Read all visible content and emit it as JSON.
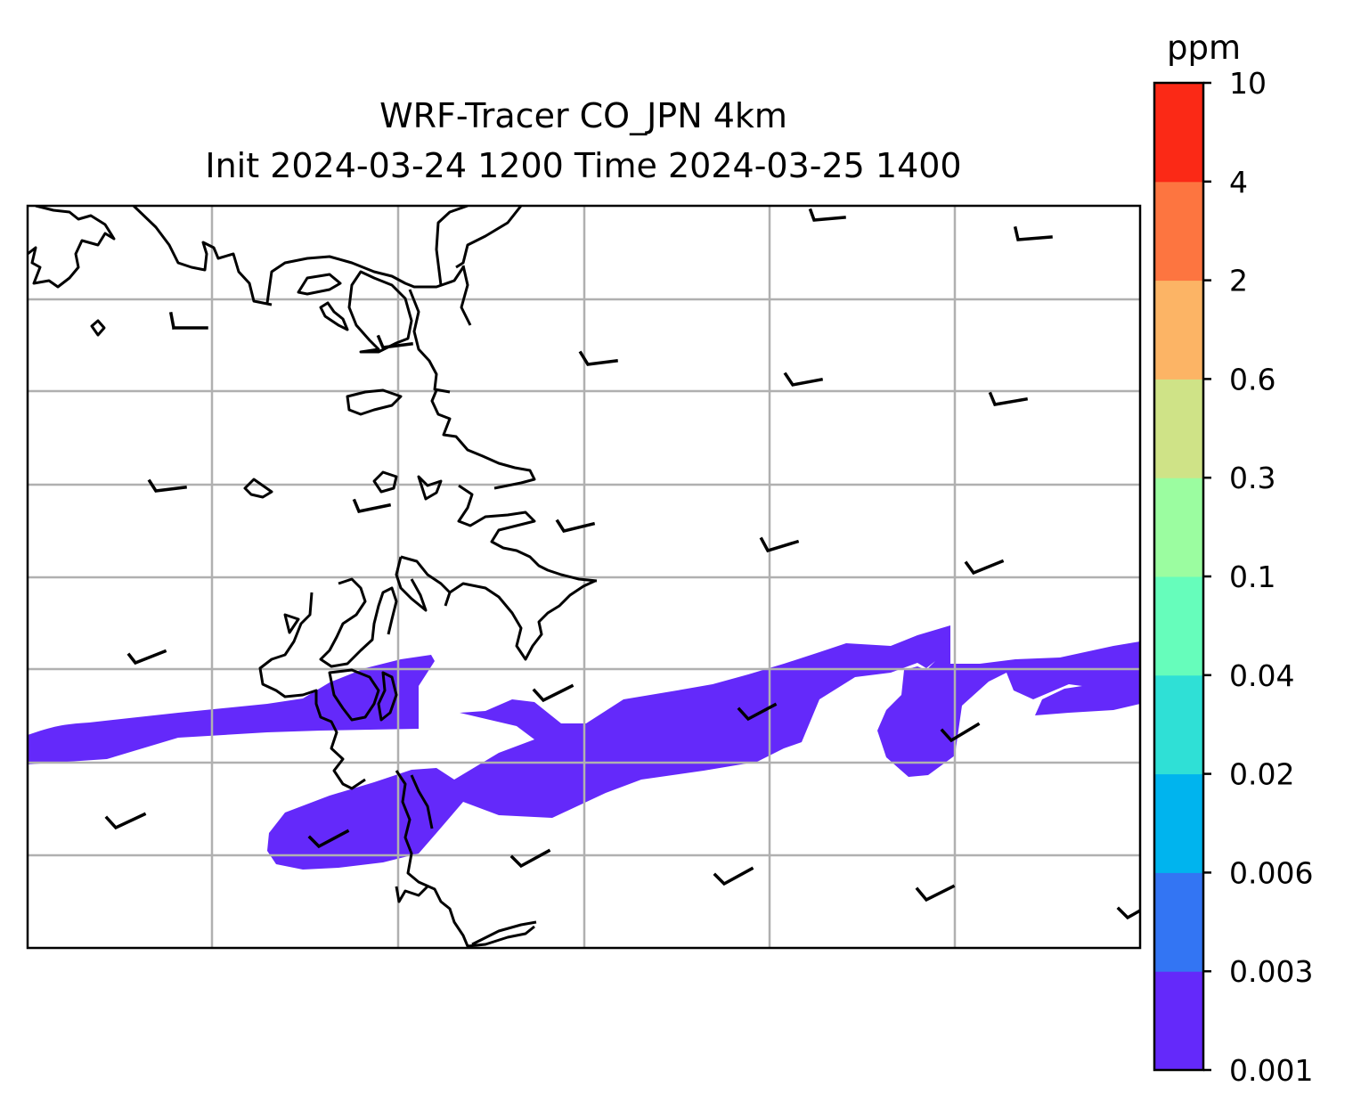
{
  "title": {
    "line1": "WRF-Tracer CO_JPN 4km",
    "line2": "Init 2024-03-24 1200 Time 2024-03-25 1400"
  },
  "colorbar": {
    "unit": "ppm",
    "levels": [
      "0.001",
      "0.003",
      "0.006",
      "0.02",
      "0.04",
      "0.1",
      "0.3",
      "0.6",
      "2",
      "4",
      "10"
    ],
    "colors": [
      "#6429fa",
      "#3375f3",
      "#00b4ee",
      "#2fe0d6",
      "#66fdbb",
      "#9bfda0",
      "#cfe387",
      "#fcb465",
      "#fd7540",
      "#fb2916"
    ]
  },
  "map": {
    "gridlines": true,
    "gridline_color": "#b0b0b0",
    "coastline_color": "#000000",
    "shaded_level": "0.001–0.003 ppm",
    "shaded_color": "#6429fa",
    "wind_barbs": true
  }
}
